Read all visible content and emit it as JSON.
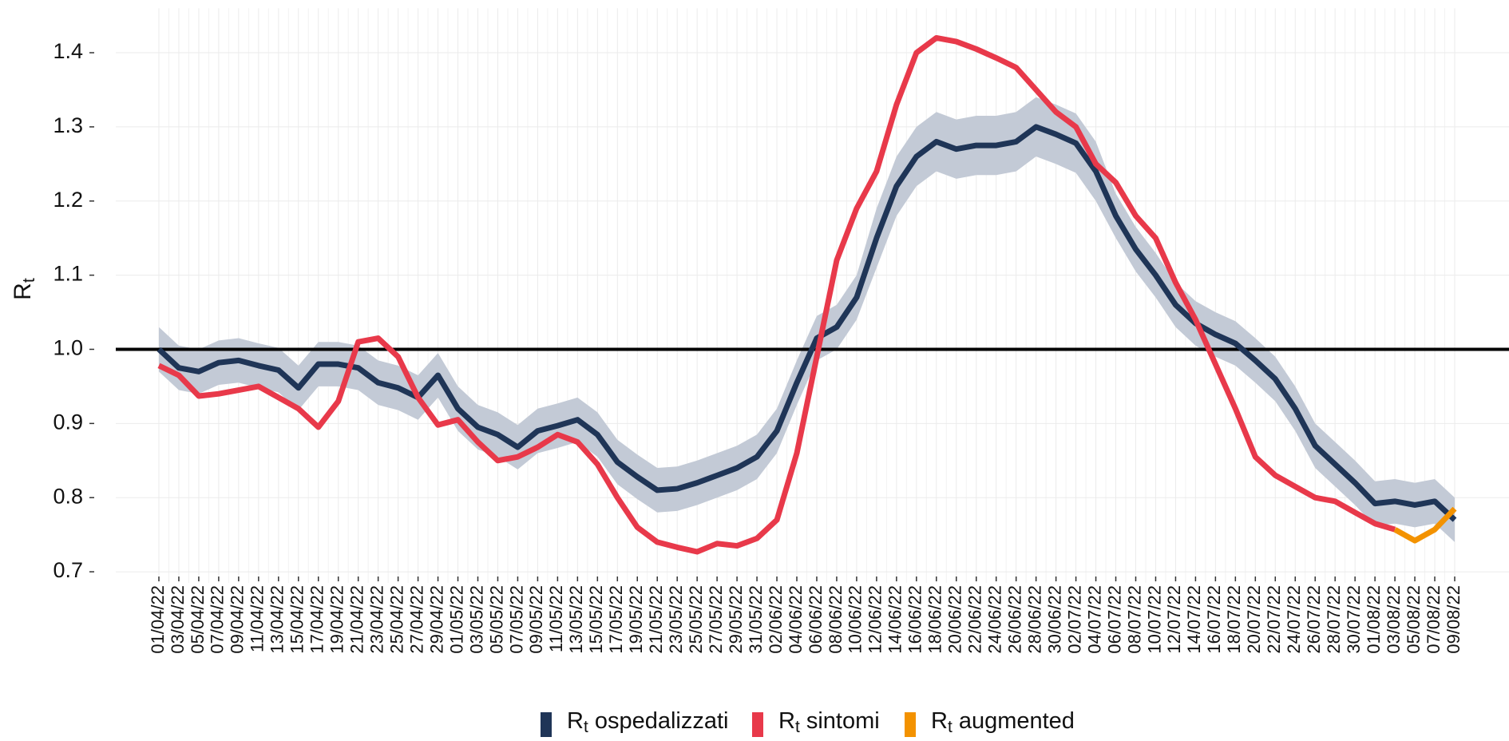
{
  "chart_data": {
    "type": "line",
    "y_label": "Rt",
    "categories": [
      "01/04/22",
      "03/04/22",
      "05/04/22",
      "07/04/22",
      "09/04/22",
      "11/04/22",
      "13/04/22",
      "15/04/22",
      "17/04/22",
      "19/04/22",
      "21/04/22",
      "23/04/22",
      "25/04/22",
      "27/04/22",
      "29/04/22",
      "01/05/22",
      "03/05/22",
      "05/05/22",
      "07/05/22",
      "09/05/22",
      "11/05/22",
      "13/05/22",
      "15/05/22",
      "17/05/22",
      "19/05/22",
      "21/05/22",
      "23/05/22",
      "25/05/22",
      "27/05/22",
      "29/05/22",
      "31/05/22",
      "02/06/22",
      "04/06/22",
      "06/06/22",
      "08/06/22",
      "10/06/22",
      "12/06/22",
      "14/06/22",
      "16/06/22",
      "18/06/22",
      "20/06/22",
      "22/06/22",
      "24/06/22",
      "26/06/22",
      "28/06/22",
      "30/06/22",
      "02/07/22",
      "04/07/22",
      "06/07/22",
      "08/07/22",
      "10/07/22",
      "12/07/22",
      "14/07/22",
      "16/07/22",
      "18/07/22",
      "20/07/22",
      "22/07/22",
      "24/07/22",
      "26/07/22",
      "28/07/22",
      "30/07/22",
      "01/08/22",
      "03/08/22",
      "05/08/22",
      "07/08/22",
      "09/08/22"
    ],
    "series": [
      {
        "name": "Rt ospedalizzati",
        "color": "#1f3557",
        "band_color": "#c3cad6",
        "values": [
          1.0,
          0.975,
          0.97,
          0.982,
          0.985,
          0.978,
          0.972,
          0.948,
          0.98,
          0.98,
          0.975,
          0.955,
          0.948,
          0.935,
          0.965,
          0.92,
          0.895,
          0.885,
          0.868,
          0.89,
          0.897,
          0.905,
          0.885,
          0.848,
          0.828,
          0.81,
          0.812,
          0.82,
          0.83,
          0.84,
          0.855,
          0.89,
          0.955,
          1.015,
          1.03,
          1.07,
          1.15,
          1.22,
          1.26,
          1.28,
          1.27,
          1.275,
          1.275,
          1.28,
          1.3,
          1.29,
          1.278,
          1.24,
          1.18,
          1.135,
          1.1,
          1.06,
          1.035,
          1.02,
          1.008,
          0.985,
          0.96,
          0.92,
          0.87,
          0.845,
          0.82,
          0.792,
          0.795,
          0.79,
          0.795,
          0.77
        ],
        "lower": [
          0.97,
          0.945,
          0.94,
          0.952,
          0.955,
          0.948,
          0.942,
          0.918,
          0.95,
          0.95,
          0.945,
          0.925,
          0.918,
          0.905,
          0.935,
          0.89,
          0.865,
          0.855,
          0.838,
          0.86,
          0.867,
          0.875,
          0.855,
          0.818,
          0.798,
          0.78,
          0.782,
          0.79,
          0.8,
          0.81,
          0.825,
          0.86,
          0.925,
          0.985,
          1.0,
          1.04,
          1.11,
          1.18,
          1.22,
          1.24,
          1.23,
          1.235,
          1.235,
          1.24,
          1.26,
          1.25,
          1.238,
          1.2,
          1.15,
          1.105,
          1.07,
          1.03,
          1.005,
          0.99,
          0.978,
          0.955,
          0.93,
          0.89,
          0.84,
          0.815,
          0.79,
          0.762,
          0.765,
          0.76,
          0.765,
          0.74
        ],
        "upper": [
          1.03,
          1.005,
          1.0,
          1.012,
          1.015,
          1.008,
          1.002,
          0.978,
          1.01,
          1.01,
          1.005,
          0.985,
          0.978,
          0.965,
          0.995,
          0.95,
          0.925,
          0.915,
          0.898,
          0.92,
          0.927,
          0.935,
          0.915,
          0.878,
          0.858,
          0.84,
          0.842,
          0.85,
          0.86,
          0.87,
          0.885,
          0.92,
          0.985,
          1.045,
          1.06,
          1.1,
          1.19,
          1.26,
          1.3,
          1.32,
          1.31,
          1.315,
          1.315,
          1.32,
          1.34,
          1.33,
          1.318,
          1.28,
          1.21,
          1.165,
          1.13,
          1.09,
          1.065,
          1.05,
          1.038,
          1.015,
          0.99,
          0.95,
          0.9,
          0.875,
          0.85,
          0.822,
          0.825,
          0.82,
          0.825,
          0.8
        ]
      },
      {
        "name": "Rt sintomi",
        "color": "#e8394a",
        "values": [
          0.978,
          0.965,
          0.937,
          0.94,
          0.945,
          0.95,
          0.935,
          0.92,
          0.895,
          0.93,
          1.01,
          1.015,
          0.99,
          0.935,
          0.898,
          0.905,
          0.875,
          0.85,
          0.855,
          0.868,
          0.885,
          0.875,
          0.845,
          0.8,
          0.76,
          0.74,
          0.733,
          0.727,
          0.738,
          0.735,
          0.745,
          0.77,
          0.86,
          0.99,
          1.12,
          1.19,
          1.24,
          1.33,
          1.4,
          1.42,
          1.415,
          1.405,
          1.393,
          1.38,
          1.35,
          1.32,
          1.3,
          1.25,
          1.225,
          1.18,
          1.15,
          1.09,
          1.04,
          0.98,
          0.92,
          0.855,
          0.83,
          0.815,
          0.8,
          0.795,
          0.78,
          0.765,
          0.757,
          null,
          null,
          null
        ]
      },
      {
        "name": "Rt augmented",
        "color": "#f39200",
        "values": [
          null,
          null,
          null,
          null,
          null,
          null,
          null,
          null,
          null,
          null,
          null,
          null,
          null,
          null,
          null,
          null,
          null,
          null,
          null,
          null,
          null,
          null,
          null,
          null,
          null,
          null,
          null,
          null,
          null,
          null,
          null,
          null,
          null,
          null,
          null,
          null,
          null,
          null,
          null,
          null,
          null,
          null,
          null,
          null,
          null,
          null,
          null,
          null,
          null,
          null,
          null,
          null,
          null,
          null,
          null,
          null,
          null,
          null,
          null,
          null,
          null,
          null,
          0.757,
          0.742,
          0.757,
          0.785
        ]
      }
    ],
    "reference_line": 1.0,
    "ylim": [
      0.685,
      1.46
    ],
    "yticks": [
      0.7,
      0.8,
      0.9,
      {
        "value": 1.0,
        "label": "1.0"
      },
      1.1,
      1.2,
      1.3,
      1.4
    ],
    "grid": true,
    "legend": "bottom"
  }
}
